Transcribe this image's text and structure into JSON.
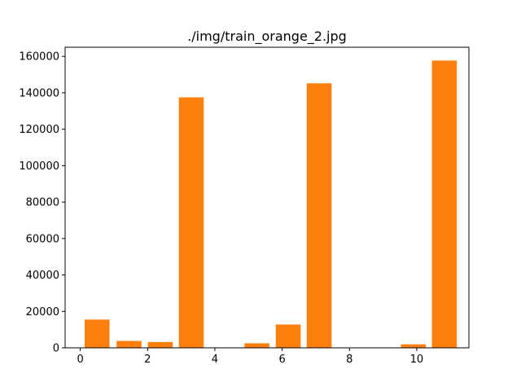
{
  "chart_data": {
    "type": "bar",
    "title": "./img/train_orange_2.jpg",
    "xlabel": "",
    "ylabel": "",
    "x": [
      0.5,
      1.45,
      2.38,
      3.3,
      4.2,
      5.25,
      6.18,
      7.1,
      8.05,
      9.0,
      9.9,
      10.82
    ],
    "values": [
      15500,
      3800,
      3200,
      137500,
      0,
      2500,
      12800,
      145200,
      0,
      0,
      1900,
      157700
    ],
    "bar_width": 0.74,
    "xlim": [
      -0.45,
      11.55
    ],
    "ylim": [
      0,
      165000
    ],
    "xticks": [
      "0",
      "2",
      "4",
      "6",
      "8",
      "10"
    ],
    "xtick_values": [
      0,
      2,
      4,
      6,
      8,
      10
    ],
    "yticks": [
      "0",
      "20000",
      "40000",
      "60000",
      "80000",
      "100000",
      "120000",
      "140000",
      "160000"
    ],
    "ytick_values": [
      0,
      20000,
      40000,
      60000,
      80000,
      100000,
      120000,
      140000,
      160000
    ],
    "bar_color": "#ff7f0e",
    "grid": false
  }
}
